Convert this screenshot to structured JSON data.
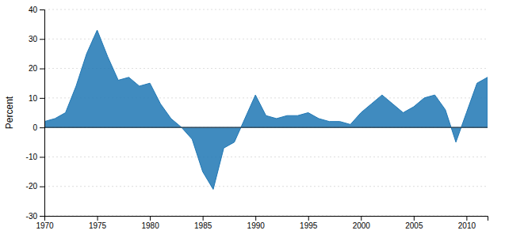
{
  "chart_data": {
    "type": "area",
    "x": [
      1970,
      1971,
      1972,
      1973,
      1974,
      1975,
      1976,
      1977,
      1978,
      1979,
      1980,
      1981,
      1982,
      1983,
      1984,
      1985,
      1986,
      1987,
      1988,
      1989,
      1990,
      1991,
      1992,
      1993,
      1994,
      1995,
      1996,
      1997,
      1998,
      1999,
      2000,
      2001,
      2002,
      2003,
      2004,
      2005,
      2006,
      2007,
      2008,
      2009,
      2010,
      2011,
      2012
    ],
    "values": [
      2,
      3,
      5,
      14,
      25,
      33,
      24,
      16,
      17,
      14,
      15,
      8,
      3,
      0,
      -4,
      -15,
      -21,
      -7,
      -5,
      3,
      11,
      4,
      3,
      4,
      4,
      5,
      3,
      2,
      2,
      1,
      5,
      8,
      11,
      8,
      5,
      7,
      10,
      11,
      6,
      -5,
      5,
      15,
      17
    ],
    "ylabel": "Percent",
    "xlim": [
      1970,
      2012
    ],
    "ylim": [
      -30,
      40
    ],
    "xticks": [
      1970,
      1975,
      1980,
      1985,
      1990,
      1995,
      2000,
      2005,
      2010
    ],
    "yticks": [
      -30,
      -20,
      -10,
      0,
      10,
      20,
      30,
      40
    ],
    "grid": "y"
  }
}
